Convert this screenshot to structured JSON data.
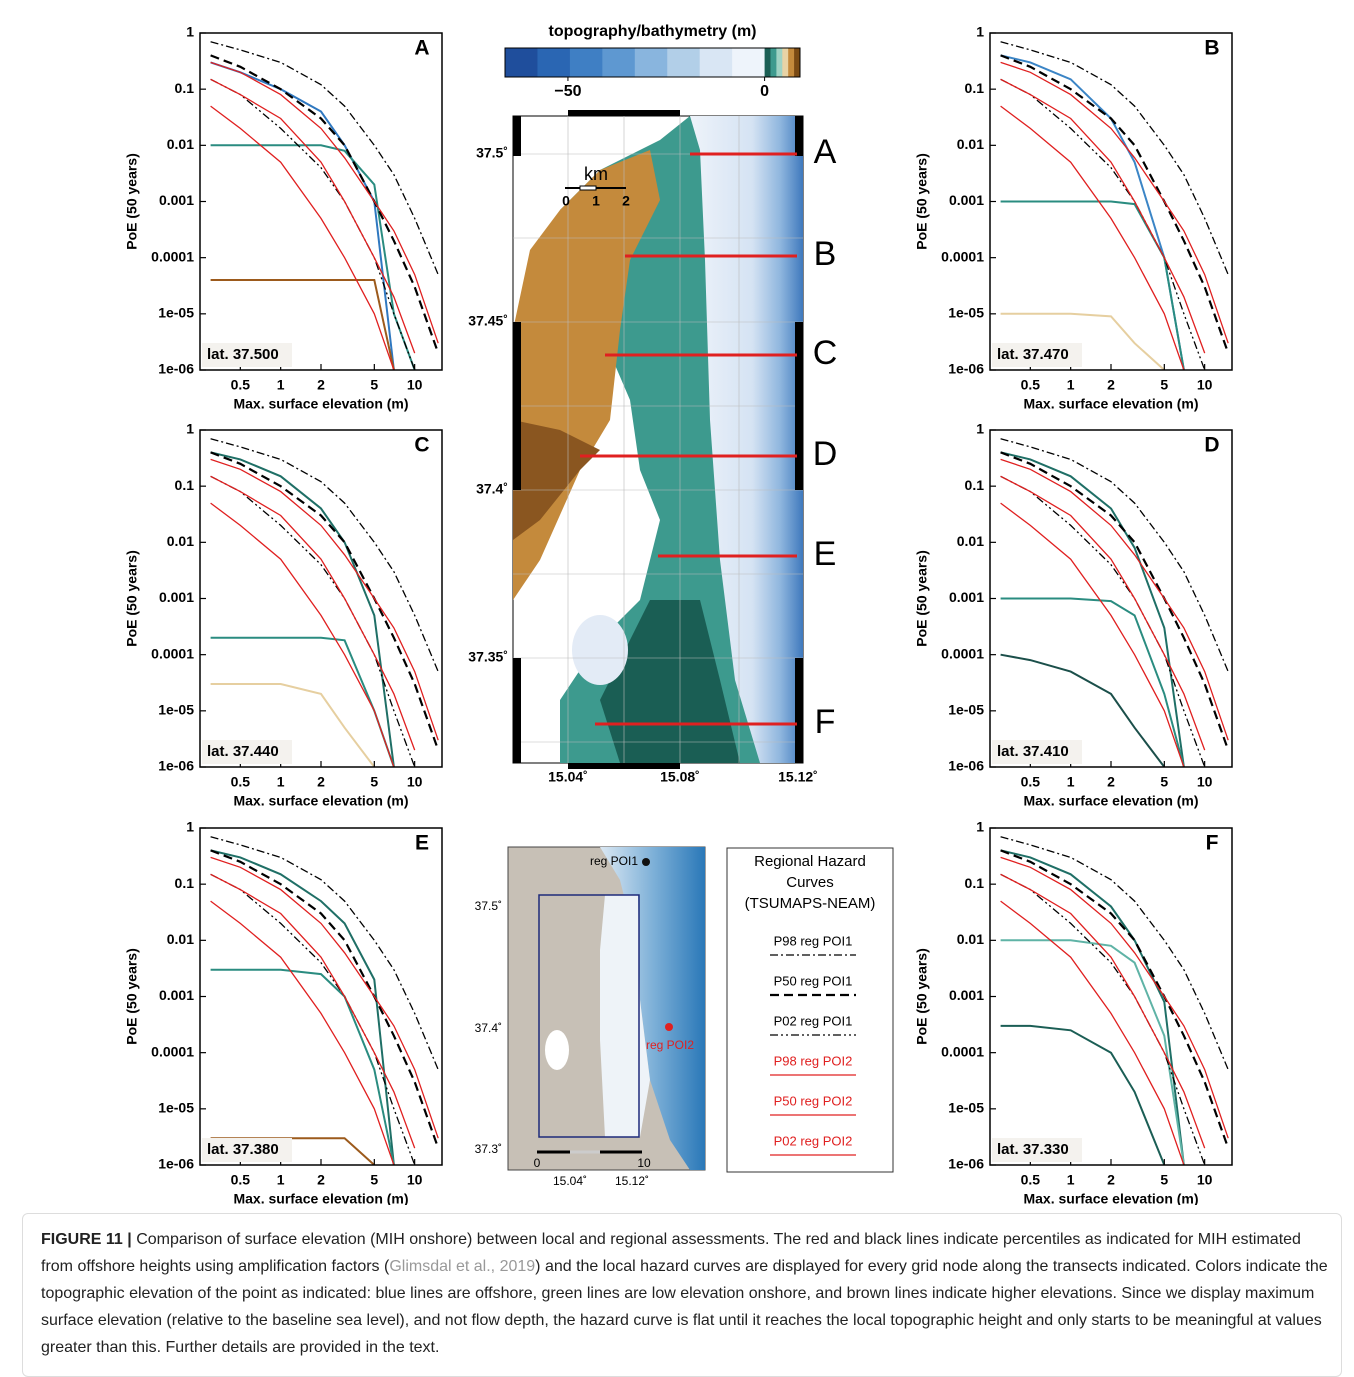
{
  "chart_data": [
    {
      "type": "line",
      "title": "A",
      "annotation": "lat. 37.500",
      "x_label": "Max. surface elevation (m)",
      "y_label": "PoE (50 years)",
      "log_x": true,
      "log_y": true,
      "xlim": [
        0.25,
        16
      ],
      "ylim": [
        1e-06,
        1
      ],
      "xticks": [
        0.5,
        1,
        2,
        5,
        10
      ],
      "yticks": [
        1,
        0.1,
        0.01,
        0.001,
        0.0001,
        {
          "value": 1e-05,
          "label": "1e-05"
        },
        {
          "value": 1e-06,
          "label": "1e-06"
        }
      ],
      "x": [
        0.3,
        0.5,
        1,
        2,
        3,
        5,
        7,
        10,
        15
      ],
      "series": [
        {
          "color": "#2f78c0",
          "values": [
            0.3,
            0.2,
            0.1,
            0.04,
            0.01,
            0.001,
            1e-06,
            null,
            null
          ]
        },
        {
          "color": "#2a8c80",
          "values": [
            0.01,
            0.01,
            0.01,
            0.01,
            0.008,
            0.002,
            1e-05,
            1e-06,
            null
          ]
        },
        {
          "color": "#9c5a1c",
          "values": [
            4e-05,
            4e-05,
            4e-05,
            4e-05,
            4e-05,
            4e-05,
            1e-06,
            null,
            null
          ]
        }
      ]
    },
    {
      "type": "line",
      "title": "B",
      "annotation": "lat. 37.470",
      "x_label": "Max. surface elevation (m)",
      "y_label": "PoE (50 years)",
      "log_x": true,
      "log_y": true,
      "xlim": [
        0.25,
        16
      ],
      "ylim": [
        1e-06,
        1
      ],
      "xticks": [
        0.5,
        1,
        2,
        5,
        10
      ],
      "yticks": [
        1,
        0.1,
        0.01,
        0.001,
        0.0001,
        {
          "value": 1e-05,
          "label": "1e-05"
        },
        {
          "value": 1e-06,
          "label": "1e-06"
        }
      ],
      "x": [
        0.3,
        0.5,
        1,
        2,
        3,
        5,
        7,
        10,
        15
      ],
      "series": [
        {
          "color": "#3b85c6",
          "values": [
            0.4,
            0.3,
            0.15,
            0.03,
            0.005,
            0.0001,
            1e-06,
            null,
            null
          ]
        },
        {
          "color": "#2a8c80",
          "values": [
            0.001,
            0.001,
            0.001,
            0.001,
            0.0009,
            0.0001,
            1e-06,
            null,
            null
          ]
        },
        {
          "color": "#e6cfa0",
          "values": [
            1e-05,
            1e-05,
            1e-05,
            9e-06,
            3e-06,
            1e-06,
            null,
            null,
            null
          ]
        }
      ]
    },
    {
      "type": "line",
      "title": "C",
      "annotation": "lat. 37.440",
      "x_label": "Max. surface elevation (m)",
      "y_label": "PoE (50 years)",
      "log_x": true,
      "log_y": true,
      "xlim": [
        0.25,
        16
      ],
      "ylim": [
        1e-06,
        1
      ],
      "xticks": [
        0.5,
        1,
        2,
        5,
        10
      ],
      "yticks": [
        1,
        0.1,
        0.01,
        0.001,
        0.0001,
        {
          "value": 1e-05,
          "label": "1e-05"
        },
        {
          "value": 1e-06,
          "label": "1e-06"
        }
      ],
      "x": [
        0.3,
        0.5,
        1,
        2,
        3,
        5,
        7,
        10,
        15
      ],
      "series": [
        {
          "color": "#1f6f66",
          "values": [
            0.4,
            0.3,
            0.15,
            0.04,
            0.01,
            0.0005,
            1e-06,
            null,
            null
          ]
        },
        {
          "color": "#2a8c80",
          "values": [
            0.0002,
            0.0002,
            0.0002,
            0.0002,
            0.00018,
            1e-05,
            1e-06,
            null,
            null
          ]
        },
        {
          "color": "#e6cfa0",
          "values": [
            3e-05,
            3e-05,
            3e-05,
            2e-05,
            5e-06,
            1e-06,
            null,
            null,
            null
          ]
        }
      ]
    },
    {
      "type": "line",
      "title": "D",
      "annotation": "lat. 37.410",
      "x_label": "Max. surface elevation (m)",
      "y_label": "PoE (50 years)",
      "log_x": true,
      "log_y": true,
      "xlim": [
        0.25,
        16
      ],
      "ylim": [
        1e-06,
        1
      ],
      "xticks": [
        0.5,
        1,
        2,
        5,
        10
      ],
      "yticks": [
        1,
        0.1,
        0.01,
        0.001,
        0.0001,
        {
          "value": 1e-05,
          "label": "1e-05"
        },
        {
          "value": 1e-06,
          "label": "1e-06"
        }
      ],
      "x": [
        0.3,
        0.5,
        1,
        2,
        3,
        5,
        7,
        10,
        15
      ],
      "series": [
        {
          "color": "#1f6f66",
          "values": [
            0.4,
            0.3,
            0.15,
            0.04,
            0.008,
            0.0003,
            1e-06,
            null,
            null
          ]
        },
        {
          "color": "#2a8c80",
          "values": [
            0.001,
            0.001,
            0.001,
            0.0009,
            0.0005,
            2e-05,
            1e-06,
            null,
            null
          ]
        },
        {
          "color": "#1b4f4a",
          "values": [
            0.0001,
            8e-05,
            5e-05,
            2e-05,
            5e-06,
            1e-06,
            null,
            null,
            null
          ]
        }
      ]
    },
    {
      "type": "line",
      "title": "E",
      "annotation": "lat. 37.380",
      "x_label": "Max. surface elevation (m)",
      "y_label": "PoE (50 years)",
      "log_x": true,
      "log_y": true,
      "xlim": [
        0.25,
        16
      ],
      "ylim": [
        1e-06,
        1
      ],
      "xticks": [
        0.5,
        1,
        2,
        5,
        10
      ],
      "yticks": [
        1,
        0.1,
        0.01,
        0.001,
        0.0001,
        {
          "value": 1e-05,
          "label": "1e-05"
        },
        {
          "value": 1e-06,
          "label": "1e-06"
        }
      ],
      "x": [
        0.3,
        0.5,
        1,
        2,
        3,
        5,
        7,
        10,
        15
      ],
      "series": [
        {
          "color": "#1f6f66",
          "values": [
            0.4,
            0.3,
            0.15,
            0.05,
            0.02,
            0.002,
            1e-06,
            null,
            null
          ]
        },
        {
          "color": "#2a8c80",
          "values": [
            0.003,
            0.003,
            0.003,
            0.0025,
            0.001,
            5e-05,
            1e-06,
            null,
            null
          ]
        },
        {
          "color": "#9c5a1c",
          "values": [
            3e-06,
            3e-06,
            3e-06,
            3e-06,
            3e-06,
            1e-06,
            null,
            null,
            null
          ]
        }
      ]
    },
    {
      "type": "line",
      "title": "F",
      "annotation": "lat. 37.330",
      "x_label": "Max. surface elevation (m)",
      "y_label": "PoE (50 years)",
      "log_x": true,
      "log_y": true,
      "xlim": [
        0.25,
        16
      ],
      "ylim": [
        1e-06,
        1
      ],
      "xticks": [
        0.5,
        1,
        2,
        5,
        10
      ],
      "yticks": [
        1,
        0.1,
        0.01,
        0.001,
        0.0001,
        {
          "value": 1e-05,
          "label": "1e-05"
        },
        {
          "value": 1e-06,
          "label": "1e-06"
        }
      ],
      "x": [
        0.3,
        0.5,
        1,
        2,
        3,
        5,
        7,
        10,
        15
      ],
      "series": [
        {
          "color": "#1f6f66",
          "values": [
            0.4,
            0.3,
            0.15,
            0.04,
            0.01,
            0.0008,
            1e-06,
            null,
            null
          ]
        },
        {
          "color": "#1b5e55",
          "values": [
            0.0003,
            0.0003,
            0.00025,
            0.0001,
            2e-05,
            1e-06,
            null,
            null,
            null
          ]
        },
        {
          "color": "#5fb3a6",
          "values": [
            0.01,
            0.01,
            0.01,
            0.008,
            0.004,
            0.0002,
            1e-06,
            null,
            null
          ]
        }
      ]
    }
  ],
  "regional_curves": {
    "title_lines": [
      "Regional Hazard",
      "Curves",
      "(TSUMAPS-NEAM)"
    ],
    "x": [
      0.3,
      0.5,
      1,
      2,
      3,
      5,
      7,
      10,
      15
    ],
    "series": [
      {
        "name": "P98 reg POI1",
        "color": "#000000",
        "dash": "8 3 2 3",
        "values": [
          0.7,
          0.5,
          0.3,
          0.12,
          0.05,
          0.01,
          0.003,
          0.0005,
          5e-05
        ]
      },
      {
        "name": "P50 reg POI1",
        "color": "#000000",
        "dash": "9 5",
        "values": [
          0.4,
          0.25,
          0.1,
          0.03,
          0.01,
          0.001,
          0.0002,
          3e-05,
          2e-06
        ]
      },
      {
        "name": "P02 reg POI1",
        "color": "#000000",
        "dash": "8 3 2 3 2 3",
        "values": [
          0.15,
          0.08,
          0.02,
          0.004,
          0.001,
          0.0001,
          1e-05,
          1e-06,
          null
        ]
      },
      {
        "name": "P98 reg POI2",
        "color": "#e02020",
        "dash": "none",
        "values": [
          0.3,
          0.2,
          0.08,
          0.02,
          0.006,
          0.001,
          0.0003,
          5e-05,
          3e-06
        ]
      },
      {
        "name": "P50 reg POI2",
        "color": "#e02020",
        "dash": "none",
        "values": [
          0.15,
          0.08,
          0.03,
          0.005,
          0.001,
          0.0001,
          2e-05,
          2e-06,
          null
        ]
      },
      {
        "name": "P02 reg POI2",
        "color": "#e02020",
        "dash": "none",
        "values": [
          0.05,
          0.02,
          0.005,
          0.0005,
          0.0001,
          1e-05,
          1e-06,
          null,
          null
        ]
      }
    ]
  },
  "map": {
    "colorbar_title": "topography/bathymetry (m)",
    "colorbar_lim": [
      -66,
      9
    ],
    "colorbar_ticks": [
      {
        "value": -50,
        "label": "−50"
      },
      0
    ],
    "lat_labels": [
      "37.5˚",
      "37.45˚",
      "37.4˚",
      "37.35˚"
    ],
    "lon_labels": [
      "15.04˚",
      "15.08˚",
      "15.12˚"
    ],
    "transects": [
      "A",
      "B",
      "C",
      "D",
      "E",
      "F"
    ],
    "scale_unit": "km",
    "scale_labels": [
      "0",
      "1",
      "2"
    ]
  },
  "inset": {
    "points": [
      "reg POI1",
      "reg POI2"
    ],
    "lat_labels": [
      "37.5˚",
      "37.4˚",
      "37.3˚"
    ],
    "lon_labels": [
      "15.04˚",
      "15.12˚"
    ],
    "scale_labels": [
      "0",
      "10"
    ]
  },
  "caption": {
    "label": "FIGURE 11 |",
    "text_before": "Comparison of surface elevation (MIH onshore) between local and regional assessments. The red and black lines indicate percentiles as indicated for MIH estimated from offshore heights using amplification factors (",
    "citation": "Glimsdal et al., 2019",
    "text_after": ") and the local hazard curves are displayed for every grid node along the transects indicated. Colors indicate the topographic elevation of the point as indicated: blue lines are offshore, green lines are low elevation onshore, and brown lines indicate higher elevations. Since we display maximum surface elevation (relative to the baseline sea level), and not flow depth, the hazard curve is flat until it reaches the local topographic height and only starts to be meaningful at values greater than this. Further details are provided in the text."
  }
}
